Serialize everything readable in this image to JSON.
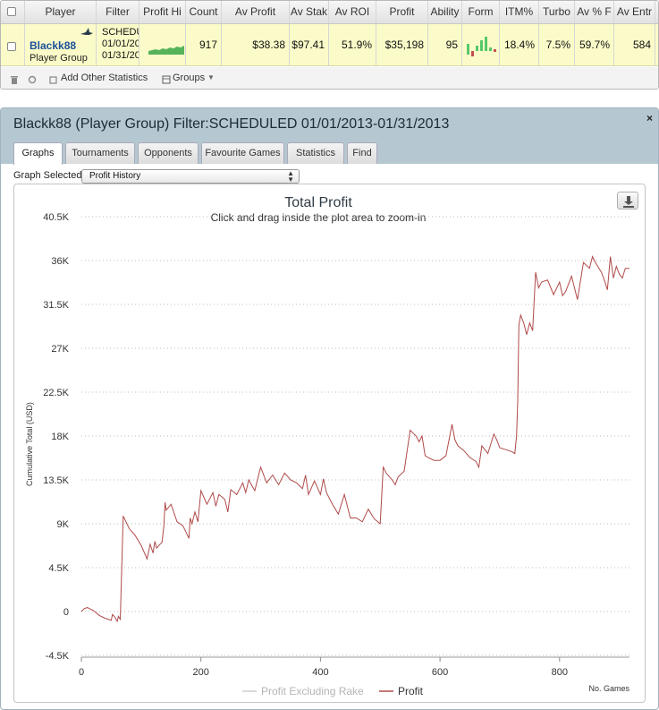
{
  "stats_grid": {
    "columns": [
      "Player",
      "Filter",
      "Profit Hi",
      "Count",
      "Av Profit",
      "Av Stak",
      "Av ROI",
      "Profit",
      "Ability",
      "Form",
      "ITM%",
      "Turbo",
      "Av % F",
      "Av Entr"
    ],
    "row": {
      "player_name": "Blackk88",
      "player_group": "Player Group",
      "filter_lines": [
        "SCHEDU",
        "01/01/20",
        "01/31/20"
      ],
      "count": "917",
      "av_profit": "$38.38",
      "av_stake": "$97.41",
      "av_roi": "51.9%",
      "profit": "$35,198",
      "ability": "95",
      "itm_pct": "18.4%",
      "turbo": "7.5%",
      "av_pct_field": "59.7%",
      "av_entrants": "584"
    }
  },
  "toolbar": {
    "add_stats_label": "Add Other Statistics",
    "groups_label": "Groups"
  },
  "window": {
    "title": "Blackk88 (Player Group) Filter:SCHEDULED 01/01/2013-01/31/2013",
    "close_label": "×",
    "tabs": [
      "Graphs",
      "Tournaments",
      "Opponents",
      "Favourite Games",
      "Statistics",
      "Find"
    ],
    "active_tab": "Graphs",
    "graph_selected_label": "Graph Selected:",
    "graph_selected_value": "Profit History"
  },
  "colors": {
    "profit_line": "#b04a4a",
    "rake_line": "#cccccc",
    "title_bar": "#b5c7d1",
    "row_highlight": "#fbfbc9",
    "player_link": "#1b4f9a",
    "sparkline": "#4caf50"
  },
  "chart_data": {
    "type": "line",
    "title": "Total Profit",
    "subtitle": "Click and drag inside the plot area to zoom-in",
    "xlabel": "No. Games",
    "ylabel": "Cumulative Total (USD)",
    "xlim": [
      0,
      917
    ],
    "ylim": [
      -4500,
      40500
    ],
    "y_ticks": [
      "-4.5K",
      "0",
      "4.5K",
      "9K",
      "13.5K",
      "18K",
      "22.5K",
      "27K",
      "31.5K",
      "36K",
      "40.5K"
    ],
    "x_ticks": [
      "0",
      "200",
      "400",
      "600",
      "800"
    ],
    "grid": true,
    "legend_position": "bottom-center",
    "series": [
      {
        "name": "Profit Excluding Rake",
        "x": [],
        "values": []
      },
      {
        "name": "Profit",
        "x": [
          0,
          5,
          10,
          20,
          30,
          40,
          50,
          52,
          55,
          60,
          62,
          65,
          70,
          80,
          90,
          100,
          110,
          115,
          120,
          123,
          126,
          130,
          135,
          138,
          140,
          142,
          150,
          160,
          170,
          180,
          182,
          185,
          190,
          195,
          200,
          210,
          220,
          225,
          230,
          240,
          245,
          250,
          260,
          270,
          275,
          280,
          290,
          300,
          305,
          310,
          320,
          330,
          340,
          350,
          360,
          370,
          375,
          380,
          390,
          400,
          405,
          410,
          420,
          430,
          440,
          450,
          460,
          470,
          480,
          490,
          500,
          505,
          510,
          520,
          525,
          530,
          540,
          550,
          560,
          565,
          570,
          575,
          580,
          590,
          600,
          610,
          620,
          625,
          630,
          640,
          650,
          660,
          665,
          670,
          680,
          690,
          695,
          700,
          710,
          720,
          725,
          728,
          730,
          732,
          735,
          740,
          745,
          750,
          755,
          760,
          765,
          770,
          780,
          790,
          800,
          805,
          810,
          820,
          830,
          840,
          850,
          855,
          860,
          870,
          875,
          880,
          885,
          890,
          895,
          900,
          905,
          910,
          917
        ],
        "values": [
          0,
          300,
          400,
          100,
          -400,
          -700,
          -900,
          -300,
          -500,
          -1000,
          -500,
          -800,
          9800,
          8500,
          7800,
          6800,
          5400,
          6900,
          6000,
          7200,
          6500,
          6800,
          7100,
          8800,
          11200,
          10400,
          11000,
          9200,
          8800,
          7500,
          9600,
          9000,
          10200,
          9200,
          12400,
          11000,
          12200,
          10800,
          12000,
          11500,
          10200,
          12500,
          12000,
          13200,
          12200,
          13500,
          12400,
          14800,
          14000,
          13200,
          14000,
          13000,
          14200,
          13500,
          13200,
          12600,
          14000,
          12000,
          13400,
          12000,
          13600,
          12200,
          11000,
          10000,
          12000,
          9600,
          9600,
          9200,
          10500,
          9500,
          9000,
          14800,
          14200,
          13500,
          13000,
          13800,
          14400,
          18600,
          18000,
          17400,
          18000,
          16000,
          15800,
          15500,
          15500,
          16000,
          19200,
          17600,
          17000,
          16500,
          15800,
          15400,
          14800,
          17000,
          16200,
          18200,
          17600,
          16800,
          16600,
          16400,
          16200,
          18000,
          21600,
          29400,
          30400,
          29600,
          28400,
          29600,
          28800,
          34800,
          33200,
          33800,
          34000,
          32500,
          33800,
          32400,
          32800,
          34400,
          32000,
          35800,
          35200,
          36400,
          35800,
          34800,
          34000,
          33000,
          36400,
          34200,
          35400,
          34600,
          34200,
          35200,
          35200
        ]
      }
    ]
  }
}
